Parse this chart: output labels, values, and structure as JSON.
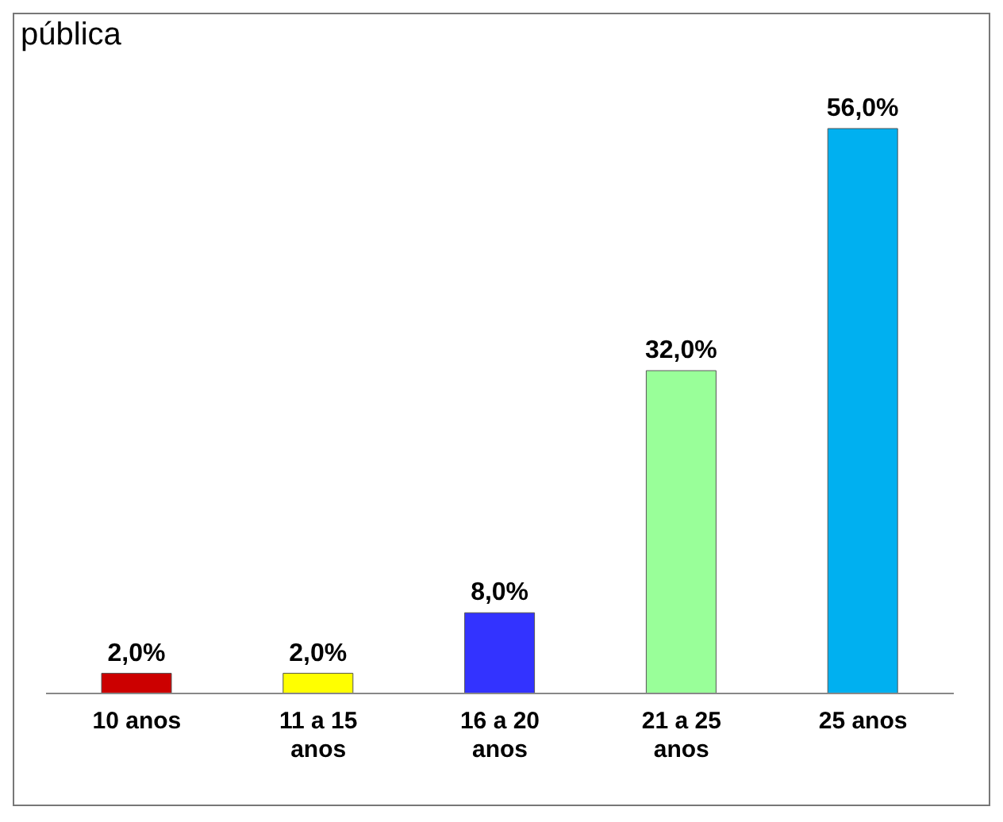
{
  "chart_data": {
    "type": "bar",
    "title": "pública",
    "categories": [
      "10 anos",
      "11 a 15 anos",
      "16 a 20 anos",
      "21 a 25 anos",
      "25 anos"
    ],
    "values": [
      2.0,
      2.0,
      8.0,
      32.0,
      56.0
    ],
    "colors": [
      "#cc0000",
      "#ffff00",
      "#3333ff",
      "#99ff99",
      "#00b0f0"
    ],
    "value_labels": [
      "2,0%",
      "2,0%",
      "8,0%",
      "32,0%",
      "56,0%"
    ]
  }
}
